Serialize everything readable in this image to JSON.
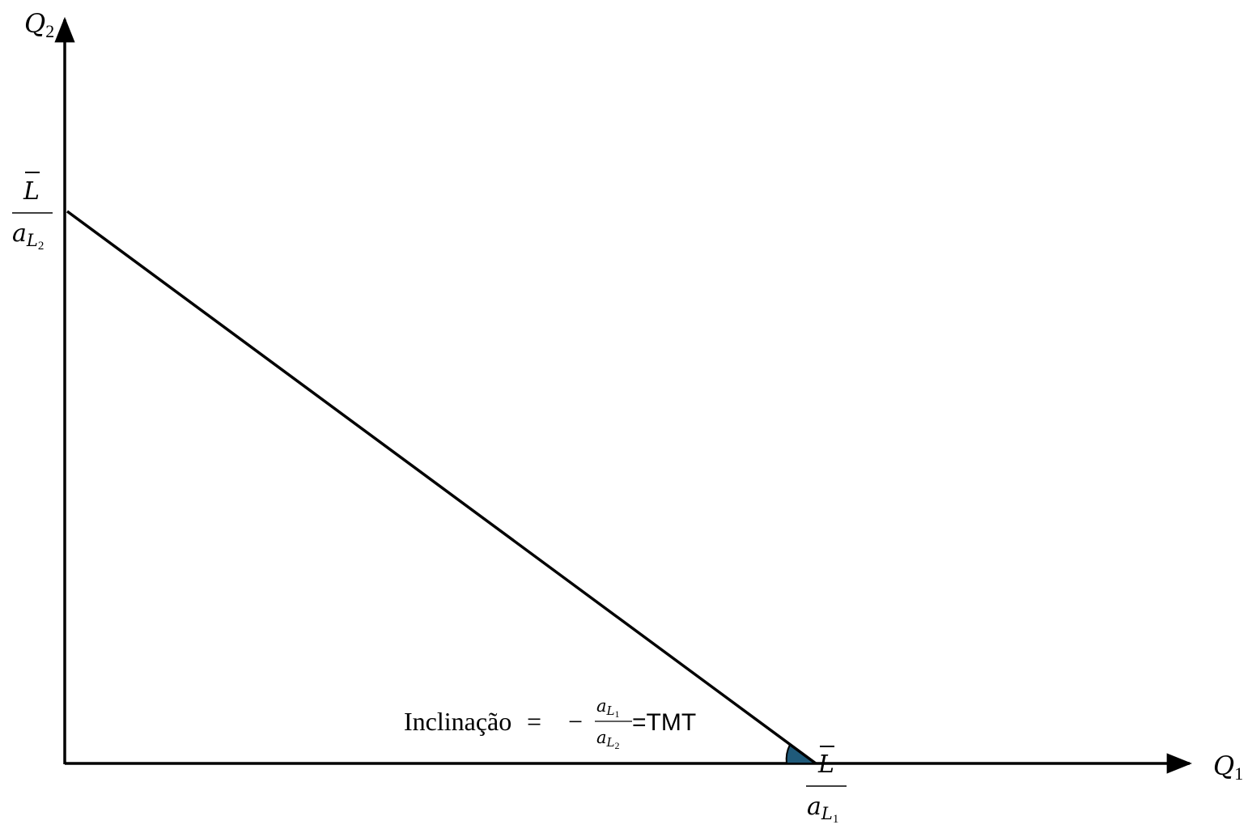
{
  "axes": {
    "y_var": "Q",
    "y_sub": "2",
    "x_var": "Q",
    "x_sub": "1"
  },
  "y_intercept_label": {
    "numerator": "L",
    "denominator_var": "a",
    "denominator_sub": "L",
    "denominator_subsub": "2"
  },
  "x_intercept_label": {
    "numerator": "L",
    "denominator_var": "a",
    "denominator_sub": "L",
    "denominator_subsub": "1"
  },
  "slope_annotation": {
    "word": "Inclinação",
    "equals": "=",
    "minus": "−",
    "frac_num_var": "a",
    "frac_num_sub": "L",
    "frac_num_subsub": "1",
    "frac_den_var": "a",
    "frac_den_sub": "L",
    "frac_den_subsub": "2",
    "suffix": "=TMT"
  },
  "colors": {
    "line": "#000000",
    "angle_fill": "#1f5a7a"
  }
}
